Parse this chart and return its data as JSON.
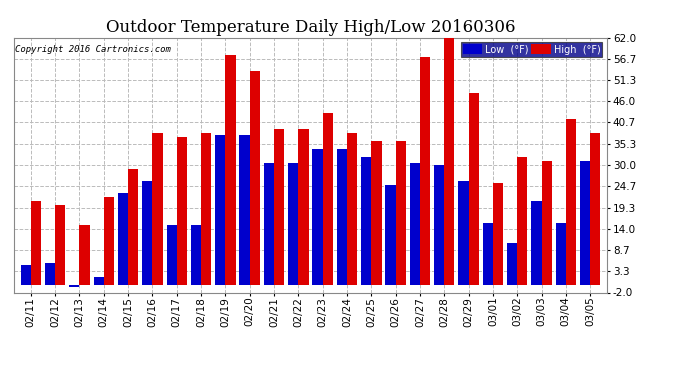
{
  "title": "Outdoor Temperature Daily High/Low 20160306",
  "copyright": "Copyright 2016 Cartronics.com",
  "legend_low": "Low  (°F)",
  "legend_high": "High  (°F)",
  "dates": [
    "02/11",
    "02/12",
    "02/13",
    "02/14",
    "02/15",
    "02/16",
    "02/17",
    "02/18",
    "02/19",
    "02/20",
    "02/21",
    "02/22",
    "02/23",
    "02/24",
    "02/25",
    "02/26",
    "02/27",
    "02/28",
    "02/29",
    "03/01",
    "03/02",
    "03/03",
    "03/04",
    "03/05"
  ],
  "highs": [
    21.0,
    20.0,
    15.0,
    22.0,
    29.0,
    38.0,
    37.0,
    38.0,
    57.5,
    53.5,
    39.0,
    39.0,
    43.0,
    38.0,
    36.0,
    36.0,
    57.0,
    62.0,
    48.0,
    25.5,
    32.0,
    31.0,
    41.5,
    38.0
  ],
  "lows": [
    5.0,
    5.5,
    -0.5,
    2.0,
    23.0,
    26.0,
    15.0,
    15.0,
    37.5,
    37.5,
    30.5,
    30.5,
    34.0,
    34.0,
    32.0,
    25.0,
    30.5,
    30.0,
    26.0,
    15.5,
    10.5,
    21.0,
    15.5,
    31.0
  ],
  "ylim": [
    -2.0,
    62.0
  ],
  "yticks": [
    -2.0,
    3.3,
    8.7,
    14.0,
    19.3,
    24.7,
    30.0,
    35.3,
    40.7,
    46.0,
    51.3,
    56.7,
    62.0
  ],
  "bar_color_low": "#0000cc",
  "bar_color_high": "#dd0000",
  "bg_color": "#ffffff",
  "plot_bg_color": "#ffffff",
  "grid_color": "#bbbbbb",
  "title_fontsize": 12,
  "tick_fontsize": 7.5,
  "bar_width": 0.42
}
